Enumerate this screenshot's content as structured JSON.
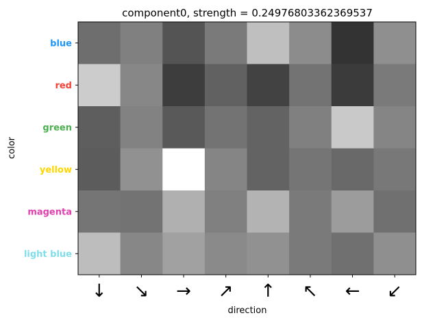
{
  "chart_data": {
    "type": "heatmap",
    "title": "component0, strength = 0.24976803362369537",
    "xlabel": "direction",
    "ylabel": "color",
    "x_categories": [
      "↓",
      "↘",
      "→",
      "↗",
      "↑",
      "↖",
      "←",
      "↙"
    ],
    "y_categories": [
      "blue",
      "red",
      "green",
      "yellow",
      "magenta",
      "light blue"
    ],
    "y_label_colors": [
      "#2196f3",
      "#f44336",
      "#4caf50",
      "#ffd600",
      "#e040b0",
      "#80deea"
    ],
    "colormap": "gray",
    "grid": false,
    "values": [
      [
        0.43,
        0.5,
        0.33,
        0.48,
        0.75,
        0.55,
        0.2,
        0.56
      ],
      [
        0.8,
        0.53,
        0.24,
        0.38,
        0.26,
        0.45,
        0.23,
        0.48
      ],
      [
        0.37,
        0.51,
        0.35,
        0.45,
        0.39,
        0.5,
        0.79,
        0.52
      ],
      [
        0.36,
        0.57,
        1.0,
        0.52,
        0.39,
        0.46,
        0.41,
        0.47
      ],
      [
        0.46,
        0.45,
        0.69,
        0.5,
        0.7,
        0.48,
        0.61,
        0.44
      ],
      [
        0.74,
        0.53,
        0.63,
        0.54,
        0.57,
        0.48,
        0.44,
        0.56
      ]
    ]
  }
}
